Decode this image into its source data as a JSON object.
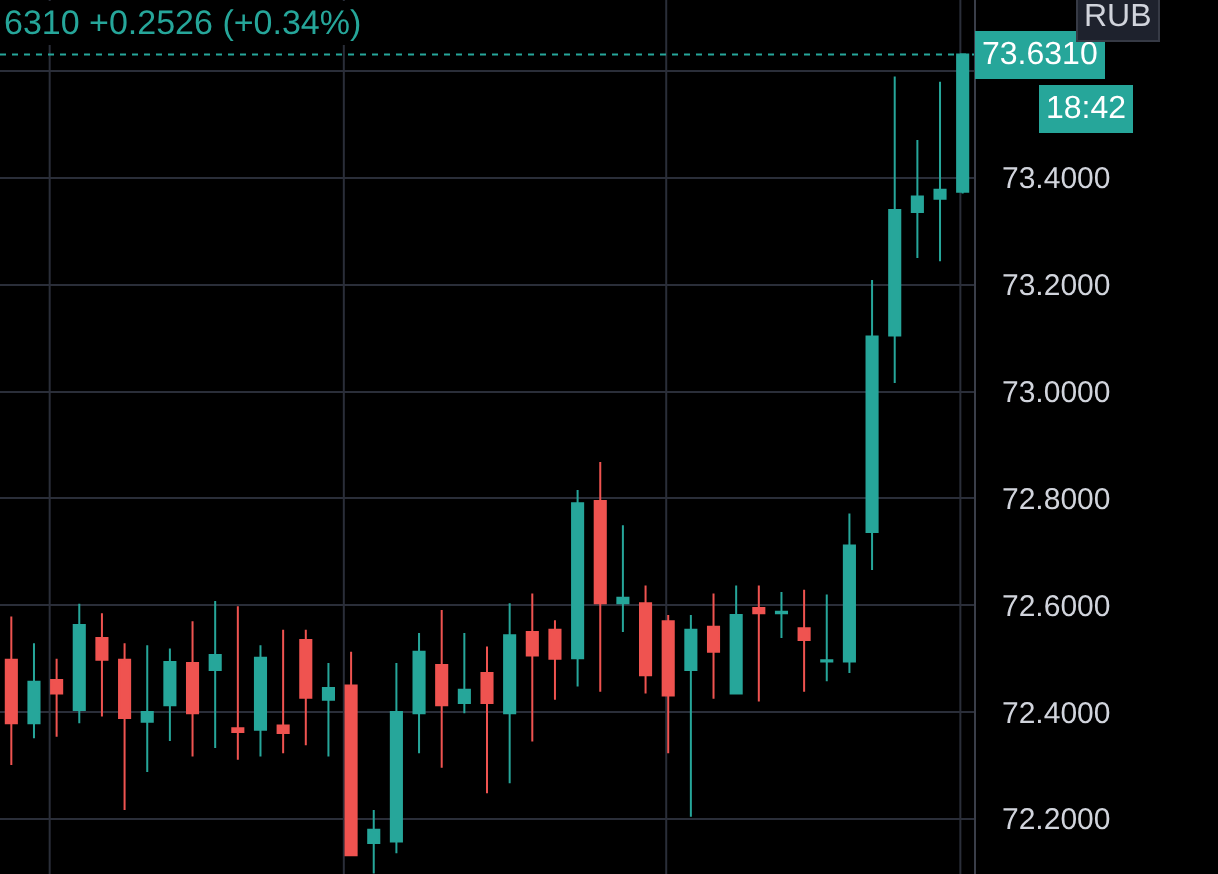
{
  "chart_data": {
    "type": "candlestick",
    "categories": [
      null,
      null,
      null,
      null,
      null,
      null,
      null,
      null,
      null,
      null,
      null,
      null,
      null,
      null,
      null,
      null,
      null,
      null,
      null,
      null,
      null,
      null,
      null,
      null,
      null,
      null,
      null,
      null,
      null,
      null,
      null,
      null,
      null,
      null,
      null,
      null,
      null,
      null,
      null,
      null,
      null,
      null,
      null
    ],
    "ohlc": [
      [
        72.498,
        72.579,
        72.301,
        72.379
      ],
      [
        72.379,
        72.529,
        72.351,
        72.457
      ],
      [
        72.46,
        72.5,
        72.354,
        72.435
      ],
      [
        72.404,
        72.603,
        72.379,
        72.563
      ],
      [
        72.539,
        72.585,
        72.392,
        72.498
      ],
      [
        72.498,
        72.529,
        72.217,
        72.389
      ],
      [
        72.382,
        72.525,
        72.288,
        72.4
      ],
      [
        72.413,
        72.519,
        72.346,
        72.494
      ],
      [
        72.492,
        72.57,
        72.317,
        72.398
      ],
      [
        72.479,
        72.608,
        72.333,
        72.507
      ],
      [
        72.37,
        72.598,
        72.311,
        72.363
      ],
      [
        72.367,
        72.525,
        72.317,
        72.502
      ],
      [
        72.375,
        72.554,
        72.323,
        72.361
      ],
      [
        72.535,
        72.554,
        72.338,
        72.427
      ],
      [
        72.423,
        72.492,
        72.317,
        72.445
      ],
      [
        72.45,
        72.513,
        72.132,
        72.132
      ],
      [
        72.155,
        72.217,
        72.098,
        72.18
      ],
      [
        72.158,
        72.492,
        72.136,
        72.4
      ],
      [
        72.398,
        72.548,
        72.323,
        72.513
      ],
      [
        72.488,
        72.591,
        72.296,
        72.413
      ],
      [
        72.417,
        72.548,
        72.398,
        72.442
      ],
      [
        72.473,
        72.523,
        72.248,
        72.417
      ],
      [
        72.398,
        72.604,
        72.267,
        72.544
      ],
      [
        72.55,
        72.622,
        72.345,
        72.506
      ],
      [
        72.554,
        72.572,
        72.423,
        72.5
      ],
      [
        72.501,
        72.816,
        72.448,
        72.791
      ],
      [
        72.795,
        72.868,
        72.438,
        72.604
      ],
      [
        72.604,
        72.75,
        72.55,
        72.614
      ],
      [
        72.604,
        72.637,
        72.435,
        72.469
      ],
      [
        72.57,
        72.582,
        72.323,
        72.431
      ],
      [
        72.479,
        72.582,
        72.204,
        72.554
      ],
      [
        72.56,
        72.622,
        72.425,
        72.513
      ],
      [
        72.435,
        72.637,
        72.435,
        72.582
      ],
      [
        72.595,
        72.637,
        72.42,
        72.585
      ],
      [
        72.585,
        72.625,
        72.539,
        72.588
      ],
      [
        72.557,
        72.629,
        72.438,
        72.535
      ],
      [
        72.495,
        72.62,
        72.458,
        72.497
      ],
      [
        72.495,
        72.772,
        72.473,
        72.712
      ],
      [
        72.737,
        73.209,
        72.666,
        73.103
      ],
      [
        73.105,
        73.59,
        73.016,
        73.34
      ],
      [
        73.336,
        73.471,
        73.25,
        73.365
      ],
      [
        73.361,
        73.58,
        73.244,
        73.378
      ],
      [
        73.374,
        73.631,
        73.371,
        73.631
      ]
    ],
    "colors": [
      "#ef5350",
      "#26a69a",
      "#ef5350",
      "#26a69a",
      "#ef5350",
      "#ef5350",
      "#26a69a",
      "#26a69a",
      "#ef5350",
      "#26a69a",
      "#ef5350",
      "#26a69a",
      "#ef5350",
      "#ef5350",
      "#26a69a",
      "#ef5350",
      "#26a69a",
      "#26a69a",
      "#26a69a",
      "#ef5350",
      "#26a69a",
      "#ef5350",
      "#26a69a",
      "#ef5350",
      "#ef5350",
      "#26a69a",
      "#ef5350",
      "#26a69a",
      "#ef5350",
      "#ef5350",
      "#26a69a",
      "#ef5350",
      "#26a69a",
      "#ef5350",
      "#26a69a",
      "#ef5350",
      "#26a69a",
      "#26a69a",
      "#26a69a",
      "#26a69a",
      "#26a69a",
      "#26a69a",
      "#26a69a"
    ],
    "ylim": [
      72.097,
      73.733
    ],
    "yticks": [
      {
        "value": 72.2,
        "label": "72.2000"
      },
      {
        "value": 72.4,
        "label": "72.4000"
      },
      {
        "value": 72.6,
        "label": "72.6000"
      },
      {
        "value": 72.8,
        "label": "72.8000"
      },
      {
        "value": 73.0,
        "label": "73.0000"
      },
      {
        "value": 73.2,
        "label": "73.2000"
      },
      {
        "value": 73.4,
        "label": "73.4000"
      },
      {
        "value": 73.6,
        "label": null
      }
    ],
    "grid": true,
    "tick_labels": "y",
    "ref_lines": [
      {
        "axis": "y",
        "value": 73.631,
        "label": "73.6310",
        "color": "#26a69a",
        "line_style": "dotted"
      }
    ],
    "annotations": [
      "6310 +0.2526 (+0.34%)",
      "18:42",
      "RUB"
    ]
  }
}
